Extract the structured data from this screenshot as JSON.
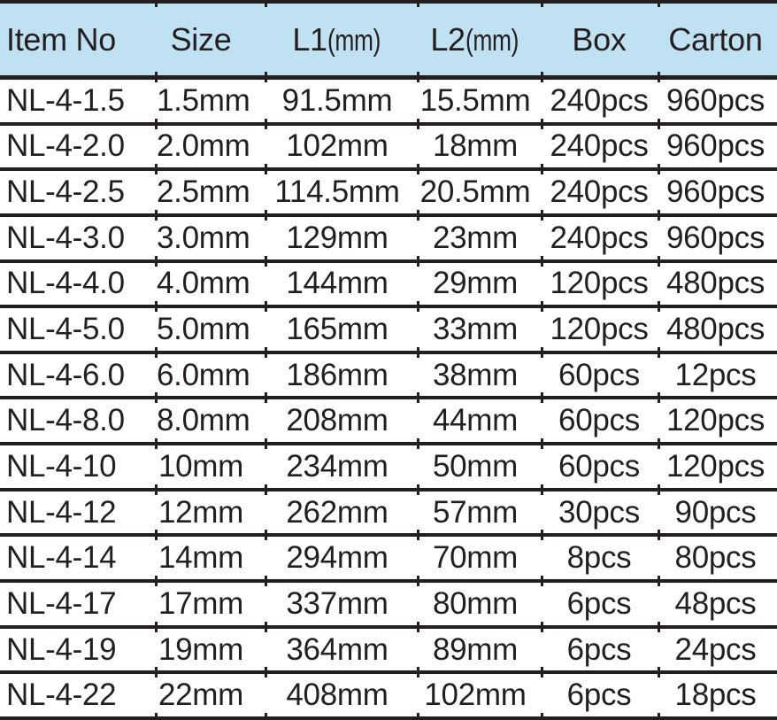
{
  "colors": {
    "header_bg": "#C0E1F2",
    "line": "#231F20",
    "text": "#231F20"
  },
  "table": {
    "header": {
      "item_no": "Item No",
      "size": "Size",
      "l1_main": "L1",
      "l1_unit": "(mm)",
      "l2_main": "L2",
      "l2_unit": "(mm)",
      "box": "Box",
      "carton": "Carton"
    },
    "rows": [
      {
        "item_no": "NL-4-1.5",
        "size": "1.5mm",
        "l1": "91.5mm",
        "l2": "15.5mm",
        "box": "240pcs",
        "carton": "960pcs"
      },
      {
        "item_no": "NL-4-2.0",
        "size": "2.0mm",
        "l1": "102mm",
        "l2": "18mm",
        "box": "240pcs",
        "carton": "960pcs"
      },
      {
        "item_no": "NL-4-2.5",
        "size": "2.5mm",
        "l1": "114.5mm",
        "l2": "20.5mm",
        "box": "240pcs",
        "carton": "960pcs"
      },
      {
        "item_no": "NL-4-3.0",
        "size": "3.0mm",
        "l1": "129mm",
        "l2": "23mm",
        "box": "240pcs",
        "carton": "960pcs"
      },
      {
        "item_no": "NL-4-4.0",
        "size": "4.0mm",
        "l1": "144mm",
        "l2": "29mm",
        "box": "120pcs",
        "carton": "480pcs"
      },
      {
        "item_no": "NL-4-5.0",
        "size": "5.0mm",
        "l1": "165mm",
        "l2": "33mm",
        "box": "120pcs",
        "carton": "480pcs"
      },
      {
        "item_no": "NL-4-6.0",
        "size": "6.0mm",
        "l1": "186mm",
        "l2": "38mm",
        "box": "60pcs",
        "carton": "12pcs"
      },
      {
        "item_no": "NL-4-8.0",
        "size": "8.0mm",
        "l1": "208mm",
        "l2": "44mm",
        "box": "60pcs",
        "carton": "120pcs"
      },
      {
        "item_no": "NL-4-10",
        "size": "10mm",
        "l1": "234mm",
        "l2": "50mm",
        "box": "60pcs",
        "carton": "120pcs"
      },
      {
        "item_no": "NL-4-12",
        "size": "12mm",
        "l1": "262mm",
        "l2": "57mm",
        "box": "30pcs",
        "carton": "90pcs"
      },
      {
        "item_no": "NL-4-14",
        "size": "14mm",
        "l1": "294mm",
        "l2": "70mm",
        "box": "8pcs",
        "carton": "80pcs"
      },
      {
        "item_no": "NL-4-17",
        "size": "17mm",
        "l1": "337mm",
        "l2": "80mm",
        "box": "6pcs",
        "carton": "48pcs"
      },
      {
        "item_no": "NL-4-19",
        "size": "19mm",
        "l1": "364mm",
        "l2": "89mm",
        "box": "6pcs",
        "carton": "24pcs"
      },
      {
        "item_no": "NL-4-22",
        "size": "22mm",
        "l1": "408mm",
        "l2": "102mm",
        "box": "6pcs",
        "carton": "18pcs"
      }
    ]
  }
}
